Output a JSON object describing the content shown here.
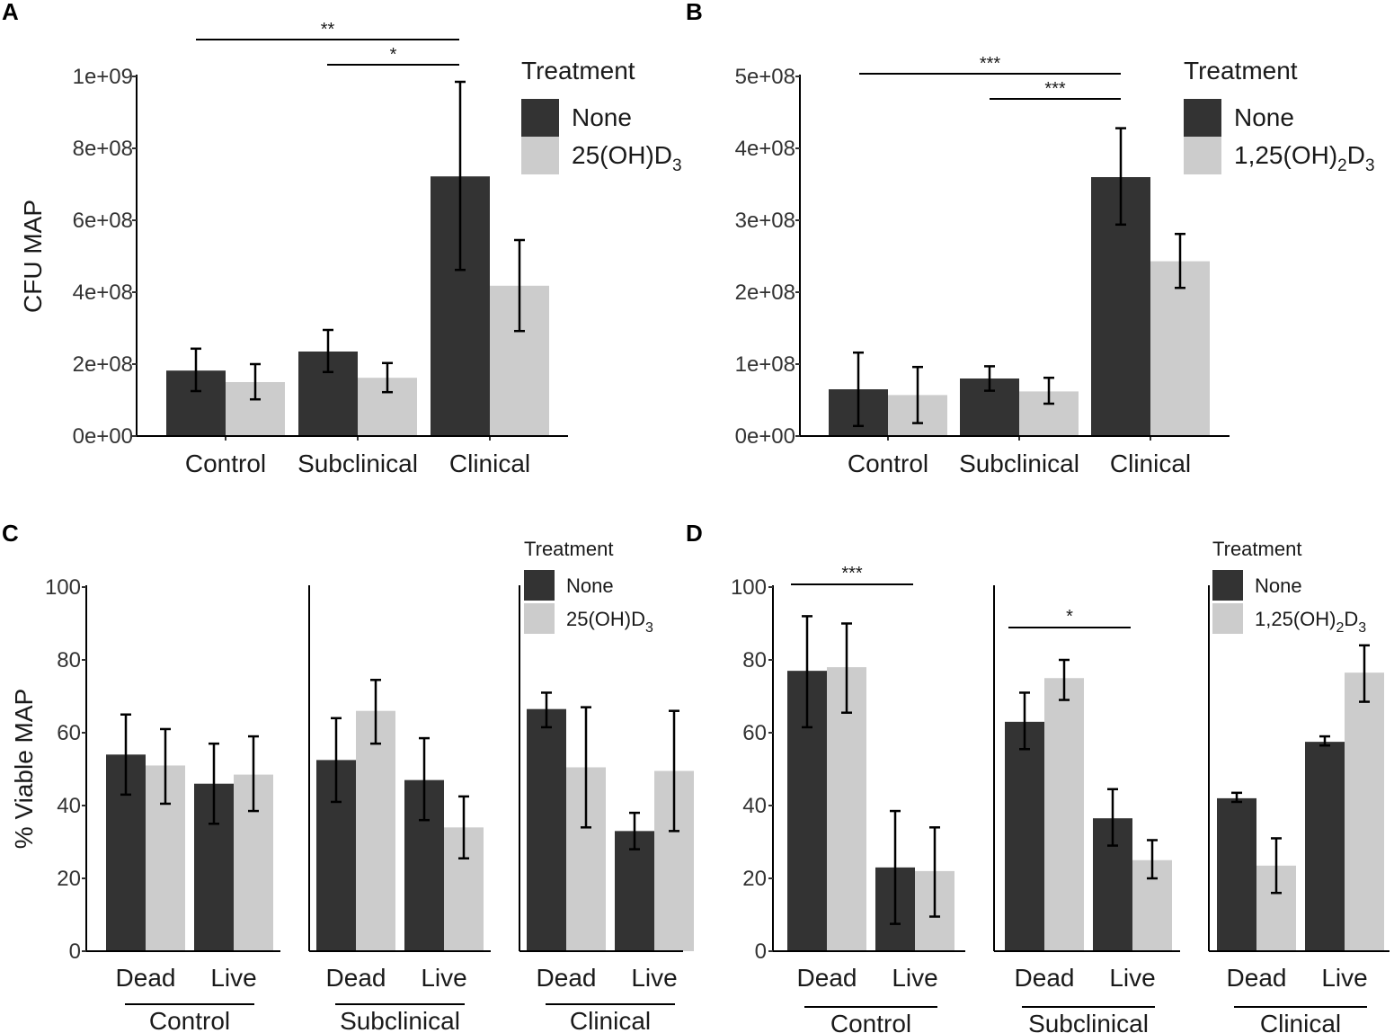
{
  "colors": {
    "none": "#333333",
    "treated": "#cccccc",
    "axis": "#000000"
  },
  "chart_data": [
    {
      "panel": "A",
      "type": "bar",
      "ylabel": "CFU MAP",
      "ylim": [
        0,
        1000000000
      ],
      "yticks": [
        0,
        200000000,
        400000000,
        600000000,
        800000000,
        1000000000
      ],
      "ytick_labels": [
        "0e+00",
        "2e+08",
        "4e+08",
        "6e+08",
        "8e+08",
        "1e+09"
      ],
      "categories": [
        "Control",
        "Subclinical",
        "Clinical"
      ],
      "series": [
        {
          "name": "None",
          "values": [
            182000000,
            235000000,
            722000000
          ],
          "err_low": [
            125000000,
            178000000,
            462000000
          ],
          "err_high": [
            243000000,
            295000000,
            985000000
          ]
        },
        {
          "name": "25(OH)D3",
          "values": [
            150000000,
            162000000,
            418000000
          ],
          "err_low": [
            102000000,
            122000000,
            292000000
          ],
          "err_high": [
            200000000,
            203000000,
            545000000
          ]
        }
      ],
      "legend": {
        "title": "Treatment",
        "items": [
          "None",
          "25(OH)D",
          "3"
        ],
        "position": "right"
      },
      "significance": [
        {
          "label": "**",
          "from": "Control",
          "to": "Clinical"
        },
        {
          "label": "*",
          "from": "Subclinical",
          "to": "Clinical"
        }
      ]
    },
    {
      "panel": "B",
      "type": "bar",
      "ylabel": "",
      "ylim": [
        0,
        500000000
      ],
      "yticks": [
        0,
        100000000,
        200000000,
        300000000,
        400000000,
        500000000
      ],
      "ytick_labels": [
        "0e+00",
        "1e+08",
        "2e+08",
        "3e+08",
        "4e+08",
        "5e+08"
      ],
      "categories": [
        "Control",
        "Subclinical",
        "Clinical"
      ],
      "series": [
        {
          "name": "None",
          "values": [
            65000000,
            80000000,
            360000000
          ],
          "err_low": [
            14000000,
            63000000,
            294000000
          ],
          "err_high": [
            116000000,
            97000000,
            428000000
          ]
        },
        {
          "name": "1,25(OH)2D3",
          "values": [
            57000000,
            62000000,
            243000000
          ],
          "err_low": [
            18000000,
            45000000,
            206000000
          ],
          "err_high": [
            96000000,
            81000000,
            281000000
          ]
        }
      ],
      "legend": {
        "title": "Treatment",
        "items": [
          "None",
          "1,25(OH)",
          "2",
          "D",
          "3"
        ],
        "position": "right"
      },
      "significance": [
        {
          "label": "***",
          "from": "Control",
          "to": "Clinical"
        },
        {
          "label": "***",
          "from": "Subclinical",
          "to": "Clinical"
        }
      ]
    },
    {
      "panel": "C",
      "type": "bar",
      "ylabel": "% Viable MAP",
      "ylim": [
        0,
        100
      ],
      "yticks": [
        0,
        20,
        40,
        60,
        80,
        100
      ],
      "ytick_labels": [
        "0",
        "20",
        "40",
        "60",
        "80",
        "100"
      ],
      "groups": [
        "Control",
        "Subclinical",
        "Clinical"
      ],
      "subcategories": [
        "Dead",
        "Live"
      ],
      "series": [
        {
          "name": "None",
          "values": [
            [
              54,
              46
            ],
            [
              52.5,
              47
            ],
            [
              66.5,
              33
            ]
          ],
          "err_low": [
            [
              43,
              35
            ],
            [
              41,
              36
            ],
            [
              61.5,
              28
            ]
          ],
          "err_high": [
            [
              65,
              57
            ],
            [
              64,
              58.5
            ],
            [
              71,
              38
            ]
          ]
        },
        {
          "name": "25(OH)D3",
          "values": [
            [
              51,
              48.5
            ],
            [
              66,
              34
            ],
            [
              50.5,
              49.5
            ]
          ],
          "err_low": [
            [
              40.5,
              38.5
            ],
            [
              57,
              25.5
            ],
            [
              34,
              33
            ]
          ],
          "err_high": [
            [
              61,
              59
            ],
            [
              74.5,
              42.5
            ],
            [
              67,
              66
            ]
          ]
        }
      ],
      "legend": {
        "title": "Treatment",
        "items": [
          "None",
          "25(OH)D",
          "3"
        ],
        "position": "top-right"
      },
      "significance": []
    },
    {
      "panel": "D",
      "type": "bar",
      "ylabel": "",
      "ylim": [
        0,
        100
      ],
      "yticks": [
        0,
        20,
        40,
        60,
        80,
        100
      ],
      "ytick_labels": [
        "0",
        "20",
        "40",
        "60",
        "80",
        "100"
      ],
      "groups": [
        "Control",
        "Subclinical",
        "Clinical"
      ],
      "subcategories": [
        "Dead",
        "Live"
      ],
      "series": [
        {
          "name": "None",
          "values": [
            [
              77,
              23
            ],
            [
              63,
              36.5
            ],
            [
              42,
              57.5
            ]
          ],
          "err_low": [
            [
              61.5,
              7.5
            ],
            [
              55.5,
              29
            ],
            [
              41,
              56.5
            ]
          ],
          "err_high": [
            [
              92,
              38.5
            ],
            [
              71,
              44.5
            ],
            [
              43.5,
              59
            ]
          ]
        },
        {
          "name": "1,25(OH)2D3",
          "values": [
            [
              78,
              22
            ],
            [
              75,
              25
            ],
            [
              23.5,
              76.5
            ]
          ],
          "err_low": [
            [
              65.5,
              9.5
            ],
            [
              69,
              20
            ],
            [
              16,
              68.5
            ]
          ],
          "err_high": [
            [
              90,
              34
            ],
            [
              80,
              30.5
            ],
            [
              31,
              84
            ]
          ]
        }
      ],
      "legend": {
        "title": "Treatment",
        "items": [
          "None",
          "1,25(OH)",
          "2",
          "D",
          "3"
        ],
        "position": "top-right"
      },
      "significance": [
        {
          "label": "***",
          "group": "Control"
        },
        {
          "label": "*",
          "group": "Subclinical"
        }
      ]
    }
  ]
}
